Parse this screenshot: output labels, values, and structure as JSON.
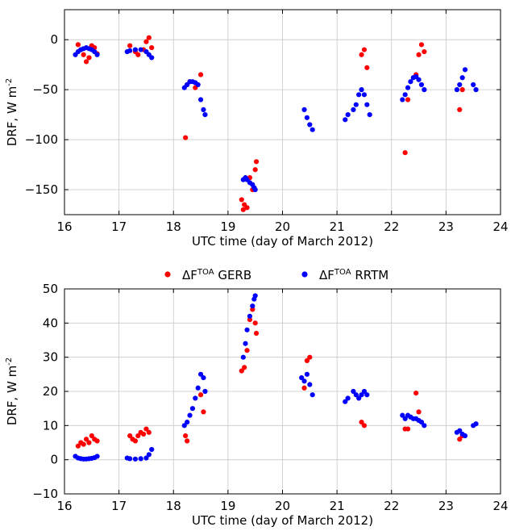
{
  "chart_data": [
    {
      "type": "scatter",
      "xlabel": "UTC time (day of March 2012)",
      "ylabel_main": "DRF, W m",
      "ylabel_sup": "-2",
      "xlim": [
        16,
        24
      ],
      "ylim": [
        -175,
        30
      ],
      "xticks": [
        16,
        17,
        18,
        19,
        20,
        21,
        22,
        23,
        24
      ],
      "yticks": [
        0,
        -50,
        -100,
        -150
      ],
      "grid": true,
      "series": [
        {
          "color": "#ff0000",
          "x": [
            16.25,
            16.3,
            16.35,
            16.4,
            16.45,
            16.5,
            16.55,
            16.6,
            17.2,
            17.3,
            17.35,
            17.45,
            17.5,
            17.55,
            17.6,
            18.22,
            18.25,
            18.3,
            18.4,
            18.5,
            19.25,
            19.28,
            19.3,
            19.32,
            19.35,
            19.4,
            19.45,
            19.5,
            19.52,
            21.45,
            21.5,
            21.55,
            22.25,
            22.3,
            22.45,
            22.5,
            22.55,
            22.6,
            23.25,
            23.3
          ],
          "y": [
            -5,
            -10,
            -15,
            -22,
            -18,
            -6,
            -8,
            -14,
            -6,
            -12,
            -15,
            -10,
            -2,
            2,
            -8,
            -98,
            -45,
            -42,
            -48,
            -35,
            -160,
            -170,
            -165,
            -180,
            -168,
            -138,
            -150,
            -130,
            -122,
            -15,
            -10,
            -28,
            -113,
            -60,
            -35,
            -15,
            -5,
            -12,
            -70,
            -50
          ]
        },
        {
          "color": "#0000ff",
          "x": [
            16.2,
            16.25,
            16.3,
            16.35,
            16.4,
            16.45,
            16.5,
            16.55,
            16.6,
            17.15,
            17.2,
            17.3,
            17.4,
            17.5,
            17.55,
            17.6,
            18.2,
            18.25,
            18.3,
            18.35,
            18.4,
            18.45,
            18.5,
            18.55,
            18.58,
            19.28,
            19.32,
            19.35,
            19.4,
            19.45,
            19.48,
            19.5,
            20.4,
            20.45,
            20.5,
            20.55,
            21.15,
            21.2,
            21.3,
            21.35,
            21.4,
            21.45,
            21.5,
            21.55,
            21.6,
            22.2,
            22.25,
            22.3,
            22.35,
            22.4,
            22.45,
            22.5,
            22.55,
            22.6,
            23.2,
            23.25,
            23.3,
            23.35,
            23.5,
            23.55
          ],
          "y": [
            -15,
            -12,
            -10,
            -9,
            -8,
            -9,
            -10,
            -12,
            -15,
            -12,
            -11,
            -10,
            -10,
            -12,
            -15,
            -18,
            -48,
            -45,
            -42,
            -42,
            -43,
            -45,
            -60,
            -70,
            -75,
            -140,
            -138,
            -140,
            -143,
            -145,
            -148,
            -150,
            -70,
            -78,
            -85,
            -90,
            -80,
            -75,
            -70,
            -65,
            -55,
            -50,
            -55,
            -65,
            -75,
            -60,
            -55,
            -48,
            -42,
            -38,
            -37,
            -40,
            -45,
            -50,
            -50,
            -45,
            -38,
            -30,
            -45,
            -50
          ]
        }
      ]
    },
    {
      "type": "scatter",
      "xlabel": "UTC time (day of March 2012)",
      "ylabel_main": "DRF, W m",
      "ylabel_sup": "-2",
      "xlim": [
        16,
        24
      ],
      "ylim": [
        -10,
        50
      ],
      "xticks": [
        16,
        17,
        18,
        19,
        20,
        21,
        22,
        23,
        24
      ],
      "yticks": [
        -10,
        0,
        10,
        20,
        30,
        40,
        50
      ],
      "grid": true,
      "legend_placement": "top-center",
      "series": [
        {
          "name_main": "ΔF",
          "name_sup": "TOA",
          "name_suffix": " GERB",
          "color": "#ff0000",
          "x": [
            16.25,
            16.3,
            16.35,
            16.4,
            16.45,
            16.5,
            16.55,
            16.6,
            17.2,
            17.25,
            17.3,
            17.35,
            17.4,
            17.45,
            17.5,
            17.55,
            18.22,
            18.25,
            18.5,
            18.55,
            19.25,
            19.3,
            19.35,
            19.4,
            19.45,
            19.5,
            19.52,
            20.4,
            20.45,
            20.5,
            21.45,
            21.5,
            22.25,
            22.3,
            22.45,
            22.5,
            23.25,
            23.3
          ],
          "y": [
            4,
            5,
            4.5,
            6,
            5,
            7,
            6,
            5.5,
            7,
            6,
            5.5,
            7,
            8,
            7.5,
            9,
            8,
            7,
            5.5,
            19,
            14,
            26,
            27,
            32,
            41,
            44,
            40,
            37,
            21,
            29,
            30,
            11,
            10,
            9,
            9,
            19.5,
            14,
            6,
            7
          ]
        },
        {
          "name_main": "ΔF",
          "name_sup": "TOA",
          "name_suffix": " RRTM",
          "color": "#0000ff",
          "x": [
            16.2,
            16.25,
            16.3,
            16.35,
            16.4,
            16.45,
            16.5,
            16.55,
            16.6,
            17.15,
            17.2,
            17.3,
            17.4,
            17.5,
            17.55,
            17.6,
            18.2,
            18.25,
            18.3,
            18.35,
            18.4,
            18.45,
            18.5,
            18.55,
            18.58,
            19.28,
            19.32,
            19.35,
            19.4,
            19.45,
            19.48,
            19.5,
            20.35,
            20.4,
            20.45,
            20.5,
            20.55,
            21.15,
            21.2,
            21.3,
            21.35,
            21.4,
            21.45,
            21.5,
            21.55,
            22.2,
            22.25,
            22.3,
            22.35,
            22.4,
            22.45,
            22.5,
            22.55,
            22.6,
            23.2,
            23.25,
            23.3,
            23.35,
            23.5,
            23.55
          ],
          "y": [
            1,
            0.5,
            0.3,
            0.2,
            0.2,
            0.3,
            0.4,
            0.6,
            1,
            0.5,
            0.3,
            0.2,
            0.3,
            0.5,
            1.5,
            3,
            10,
            11,
            13,
            15,
            18,
            21,
            25,
            24,
            20,
            30,
            34,
            38,
            42,
            45,
            47,
            48,
            24,
            23,
            25,
            22,
            19,
            17,
            18,
            20,
            19,
            18,
            19,
            20,
            19,
            13,
            12,
            13,
            12.5,
            12,
            12,
            11.5,
            11,
            10,
            8,
            8.5,
            7.5,
            7,
            10,
            10.5
          ]
        }
      ]
    }
  ]
}
